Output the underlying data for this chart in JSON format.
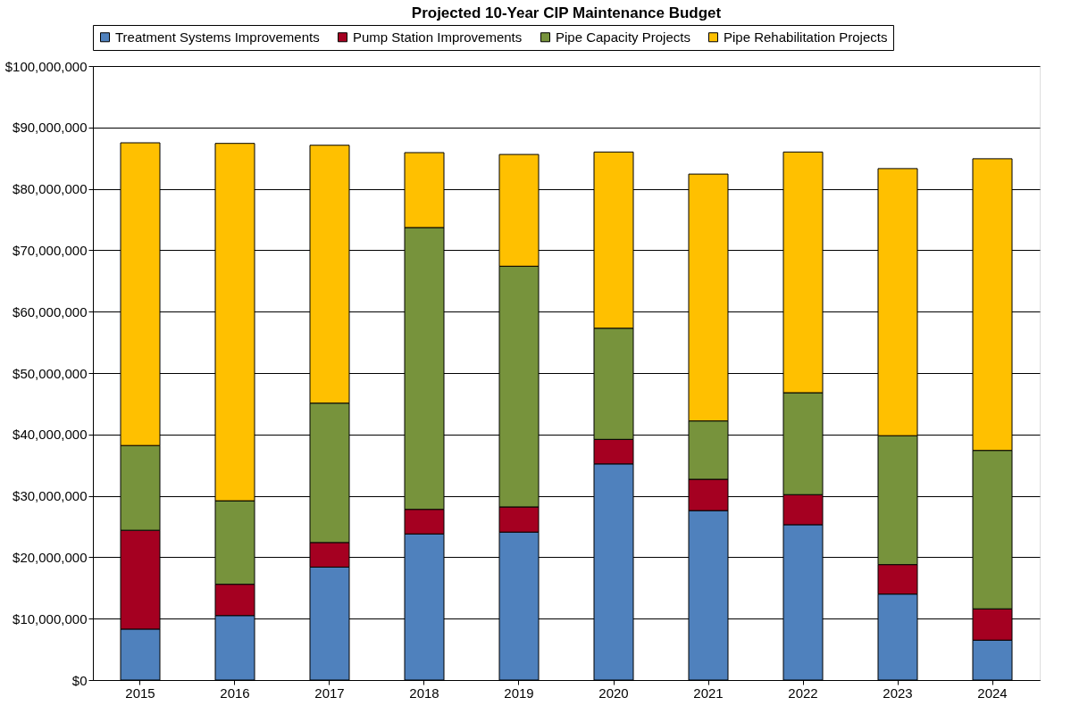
{
  "chart_data": {
    "type": "bar",
    "title": "Projected 10-Year CIP Maintenance Budget",
    "stacked": true,
    "categories": [
      "2015",
      "2016",
      "2017",
      "2018",
      "2019",
      "2020",
      "2021",
      "2022",
      "2023",
      "2024"
    ],
    "series": [
      {
        "name": "Treatment Systems Improvements",
        "color": "#4f81bd",
        "values": [
          8300000,
          10500000,
          18400000,
          23800000,
          24100000,
          35200000,
          27600000,
          25300000,
          14000000,
          6500000
        ]
      },
      {
        "name": "Pump Station Improvements",
        "color": "#a50021",
        "values": [
          16100000,
          5100000,
          4000000,
          4000000,
          4100000,
          4000000,
          5100000,
          4900000,
          4800000,
          5100000
        ]
      },
      {
        "name": "Pipe Capacity Projects",
        "color": "#77933c",
        "values": [
          13800000,
          13600000,
          22700000,
          45900000,
          39200000,
          18100000,
          9500000,
          16600000,
          21000000,
          25800000
        ]
      },
      {
        "name": "Pipe Rehabilitation Projects",
        "color": "#ffc000",
        "values": [
          49300000,
          58200000,
          42000000,
          12200000,
          18200000,
          28700000,
          40200000,
          39200000,
          43500000,
          47500000
        ]
      }
    ],
    "ylim": [
      0,
      100000000
    ],
    "yticks": [
      {
        "value": 0,
        "label": "$0"
      },
      {
        "value": 10000000,
        "label": "$10,000,000"
      },
      {
        "value": 20000000,
        "label": "$20,000,000"
      },
      {
        "value": 30000000,
        "label": "$30,000,000"
      },
      {
        "value": 40000000,
        "label": "$40,000,000"
      },
      {
        "value": 50000000,
        "label": "$50,000,000"
      },
      {
        "value": 60000000,
        "label": "$60,000,000"
      },
      {
        "value": 70000000,
        "label": "$70,000,000"
      },
      {
        "value": 80000000,
        "label": "$80,000,000"
      },
      {
        "value": 90000000,
        "label": "$90,000,000"
      },
      {
        "value": 100000000,
        "label": "$100,000,000"
      }
    ],
    "grid": "y",
    "legend": "top"
  }
}
